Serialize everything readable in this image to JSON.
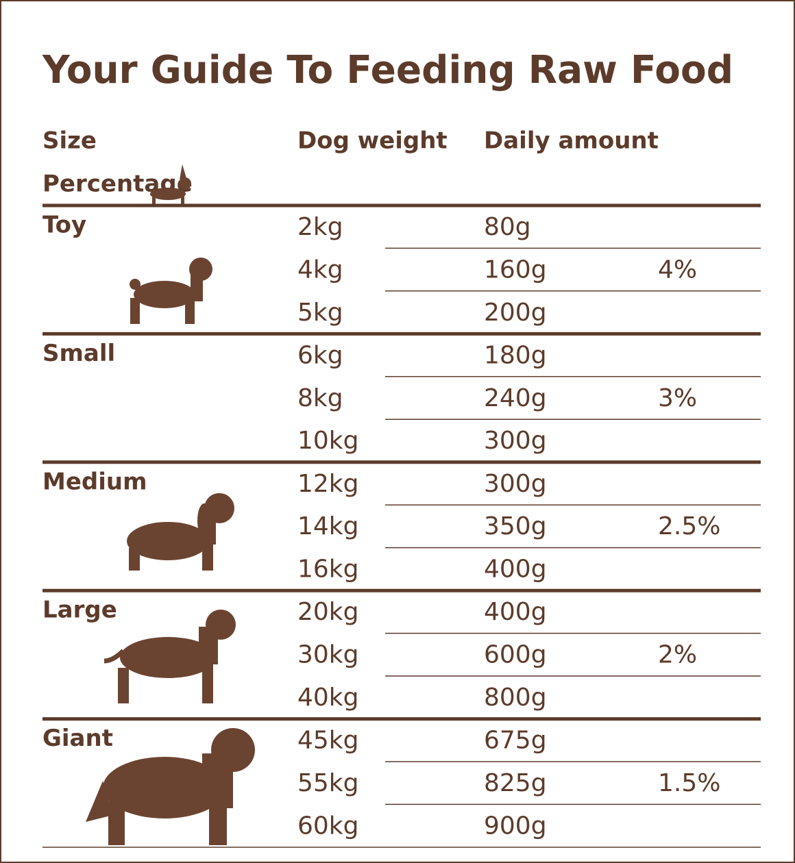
{
  "header": {
    "title": "Your Guide To Feeding Raw Food"
  },
  "table": {
    "columns": [
      "Size",
      "Dog weight",
      "Daily amount",
      "Percentage"
    ],
    "groups": [
      {
        "size": "Toy",
        "percentage": "4%",
        "rows": [
          [
            "2kg",
            "80g"
          ],
          [
            "4kg",
            "160g"
          ],
          [
            "5kg",
            "200g"
          ]
        ]
      },
      {
        "size": "Small",
        "percentage": "3%",
        "rows": [
          [
            "6kg",
            "180g"
          ],
          [
            "8kg",
            "240g"
          ],
          [
            "10kg",
            "300g"
          ]
        ]
      },
      {
        "size": "Medium",
        "percentage": "2.5%",
        "rows": [
          [
            "12kg",
            "300g"
          ],
          [
            "14kg",
            "350g"
          ],
          [
            "16kg",
            "400g"
          ]
        ]
      },
      {
        "size": "Large",
        "percentage": "2%",
        "rows": [
          [
            "20kg",
            "400g"
          ],
          [
            "30kg",
            "600g"
          ],
          [
            "40kg",
            "800g"
          ]
        ]
      },
      {
        "size": "Giant",
        "percentage": "1.5%",
        "rows": [
          [
            "45kg",
            "675g"
          ],
          [
            "55kg",
            "825g"
          ],
          [
            "60kg",
            "900g"
          ]
        ]
      }
    ]
  }
}
